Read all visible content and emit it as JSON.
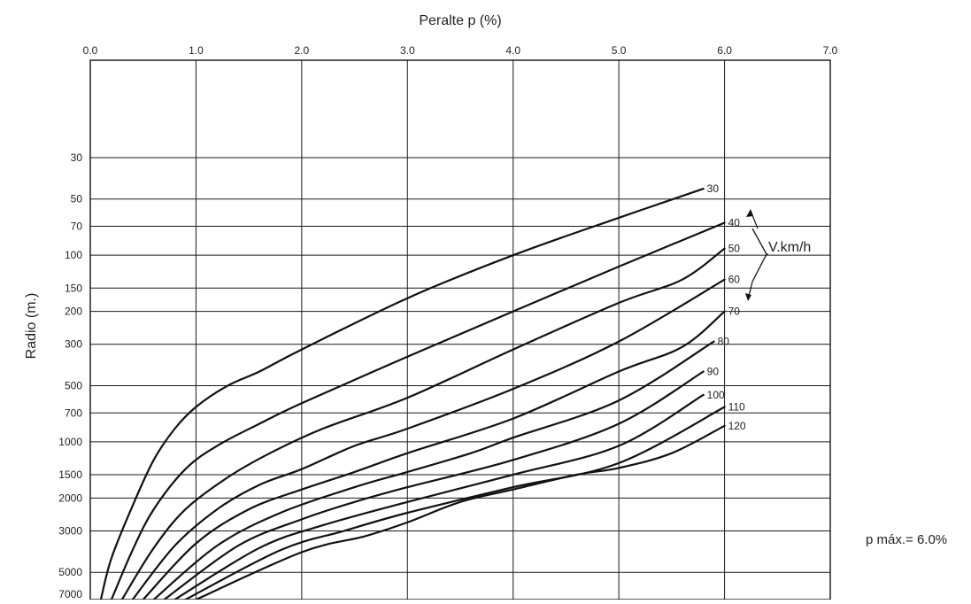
{
  "chart_data": {
    "type": "line",
    "title": "",
    "xlabel": "Peralte p (%)",
    "ylabel": "Radio (m.)",
    "xlim": [
      0,
      7
    ],
    "x_ticks": [
      "0.0",
      "1.0",
      "2.0",
      "3.0",
      "4.0",
      "5.0",
      "6.0",
      "7.0"
    ],
    "y_scale": "log",
    "y_direction": "downward",
    "y_ticks": [
      "30",
      "50",
      "70",
      "100",
      "150",
      "200",
      "300",
      "500",
      "700",
      "1000",
      "1500",
      "2000",
      "3000",
      "5000",
      "7000"
    ],
    "grid": true,
    "legend_title": "V.km/h",
    "note": "p máx.= 6.0%",
    "series": [
      {
        "name": "30",
        "points": [
          [
            0.1,
            7000
          ],
          [
            0.2,
            4200
          ],
          [
            0.4,
            2200
          ],
          [
            0.6,
            1250
          ],
          [
            0.8,
            850
          ],
          [
            1.0,
            650
          ],
          [
            1.3,
            500
          ],
          [
            1.6,
            420
          ],
          [
            2.0,
            320
          ],
          [
            3.0,
            170
          ],
          [
            4.0,
            100
          ],
          [
            5.0,
            63
          ],
          [
            5.8,
            44
          ]
        ]
      },
      {
        "name": "40",
        "points": [
          [
            0.2,
            7000
          ],
          [
            0.4,
            3800
          ],
          [
            0.6,
            2300
          ],
          [
            0.9,
            1400
          ],
          [
            1.2,
            1050
          ],
          [
            1.6,
            800
          ],
          [
            2.0,
            620
          ],
          [
            3.0,
            350
          ],
          [
            4.0,
            200
          ],
          [
            5.0,
            115
          ],
          [
            6.0,
            67
          ]
        ]
      },
      {
        "name": "50",
        "points": [
          [
            0.3,
            7000
          ],
          [
            0.6,
            3700
          ],
          [
            0.9,
            2300
          ],
          [
            1.3,
            1550
          ],
          [
            1.7,
            1150
          ],
          [
            2.2,
            850
          ],
          [
            3.0,
            580
          ],
          [
            4.0,
            320
          ],
          [
            5.0,
            180
          ],
          [
            5.6,
            135
          ],
          [
            6.0,
            92
          ]
        ]
      },
      {
        "name": "60",
        "points": [
          [
            0.4,
            7000
          ],
          [
            0.8,
            3600
          ],
          [
            1.2,
            2300
          ],
          [
            1.6,
            1700
          ],
          [
            2.0,
            1400
          ],
          [
            2.5,
            1050
          ],
          [
            3.0,
            850
          ],
          [
            4.0,
            520
          ],
          [
            5.0,
            290
          ],
          [
            6.0,
            135
          ]
        ]
      },
      {
        "name": "70",
        "points": [
          [
            0.5,
            7000
          ],
          [
            1.0,
            3500
          ],
          [
            1.5,
            2300
          ],
          [
            2.0,
            1800
          ],
          [
            2.5,
            1450
          ],
          [
            3.0,
            1150
          ],
          [
            4.0,
            750
          ],
          [
            5.0,
            420
          ],
          [
            5.6,
            310
          ],
          [
            6.0,
            200
          ]
        ]
      },
      {
        "name": "80",
        "points": [
          [
            0.6,
            7000
          ],
          [
            1.2,
            3600
          ],
          [
            1.8,
            2400
          ],
          [
            2.5,
            1750
          ],
          [
            3.0,
            1450
          ],
          [
            3.6,
            1150
          ],
          [
            4.0,
            950
          ],
          [
            5.0,
            600
          ],
          [
            5.9,
            290
          ]
        ]
      },
      {
        "name": "90",
        "points": [
          [
            0.7,
            7000
          ],
          [
            1.4,
            3600
          ],
          [
            2.0,
            2600
          ],
          [
            2.5,
            2100
          ],
          [
            3.0,
            1750
          ],
          [
            4.0,
            1250
          ],
          [
            5.0,
            800
          ],
          [
            5.8,
            420
          ]
        ]
      },
      {
        "name": "100",
        "points": [
          [
            0.8,
            7000
          ],
          [
            1.6,
            3700
          ],
          [
            2.2,
            2800
          ],
          [
            3.0,
            2100
          ],
          [
            4.0,
            1500
          ],
          [
            5.0,
            1050
          ],
          [
            5.8,
            560
          ]
        ]
      },
      {
        "name": "110",
        "points": [
          [
            0.9,
            7000
          ],
          [
            1.8,
            3800
          ],
          [
            2.4,
            3000
          ],
          [
            3.0,
            2400
          ],
          [
            4.0,
            1750
          ],
          [
            5.0,
            1300
          ],
          [
            6.0,
            650
          ]
        ]
      },
      {
        "name": "120",
        "points": [
          [
            1.0,
            7000
          ],
          [
            2.0,
            3900
          ],
          [
            2.6,
            3200
          ],
          [
            3.0,
            2700
          ],
          [
            3.5,
            2100
          ],
          [
            4.0,
            1800
          ],
          [
            4.6,
            1500
          ],
          [
            5.0,
            1380
          ],
          [
            5.5,
            1150
          ],
          [
            6.0,
            820
          ]
        ]
      }
    ]
  }
}
